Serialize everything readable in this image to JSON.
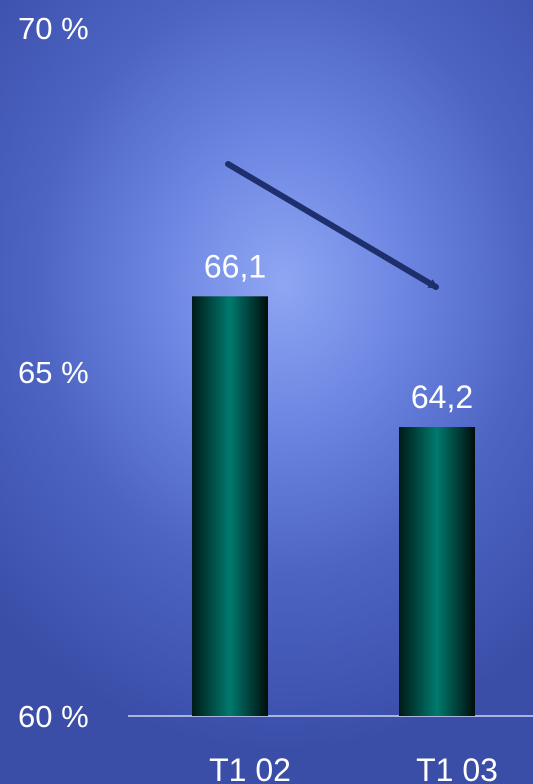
{
  "chart_data": {
    "type": "bar",
    "categories": [
      "T1 02",
      "T1 03"
    ],
    "values": [
      66.1,
      64.2
    ],
    "value_labels": [
      "66,1",
      "64,2"
    ],
    "title": "",
    "xlabel": "",
    "ylabel": "",
    "ylim": [
      60,
      70
    ],
    "y_ticks": [
      {
        "value": 60,
        "label": "60 %"
      },
      {
        "value": 65,
        "label": "65 %"
      },
      {
        "value": 70,
        "label": "70 %"
      }
    ],
    "grid": false,
    "legend": "none",
    "annotations": [
      {
        "kind": "trend-arrow",
        "direction": "down",
        "meaning": "decrease from T1 02 to T1 03"
      }
    ],
    "colors": {
      "bar_center": "#007a6e",
      "bar_edge": "#001210",
      "arrow": "#1e2f6e",
      "baseline": "#aab4dc",
      "text": "#ffffff"
    }
  }
}
